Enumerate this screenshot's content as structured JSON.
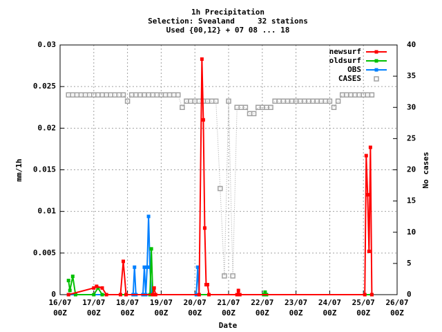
{
  "chart_data": {
    "type": "line",
    "title": [
      "1h Precipitation",
      "Selection: Svealand     32 stations",
      "Used {00,12} + 07 08 ... 18"
    ],
    "xlabel": "Date",
    "ylabel": "mm/1h",
    "y2label": "No cases",
    "xlim": [
      "16/07 00Z",
      "26/07 00Z"
    ],
    "xticks": [
      {
        "value": "16/07 00Z",
        "label": [
          "16/07",
          "00Z"
        ]
      },
      {
        "value": "17/07 00Z",
        "label": [
          "17/07",
          "00Z"
        ]
      },
      {
        "value": "18/07 00Z",
        "label": [
          "18/07",
          "00Z"
        ]
      },
      {
        "value": "19/07 00Z",
        "label": [
          "19/07",
          "00Z"
        ]
      },
      {
        "value": "20/07 00Z",
        "label": [
          "20/07",
          "00Z"
        ]
      },
      {
        "value": "21/07 00Z",
        "label": [
          "21/07",
          "00Z"
        ]
      },
      {
        "value": "22/07 00Z",
        "label": [
          "22/07",
          "00Z"
        ]
      },
      {
        "value": "23/07 00Z",
        "label": [
          "23/07",
          "00Z"
        ]
      },
      {
        "value": "24/07 00Z",
        "label": [
          "24/07",
          "00Z"
        ]
      },
      {
        "value": "25/07 00Z",
        "label": [
          "25/07",
          "00Z"
        ]
      },
      {
        "value": "26/07 00Z",
        "label": [
          "26/07",
          "00Z"
        ]
      }
    ],
    "ylim": [
      0,
      0.03
    ],
    "yticks": [
      0,
      0.005,
      0.01,
      0.015,
      0.02,
      0.025,
      0.03
    ],
    "y2lim": [
      0,
      40
    ],
    "y2ticks": [
      0,
      5,
      10,
      15,
      20,
      25,
      30,
      35,
      40
    ],
    "grid": true,
    "legend": "top-right",
    "series": [
      {
        "name": "newsurf",
        "color": "#ff0000",
        "x": [
          "16/07 06Z",
          "17/07 00Z",
          "17/07 02Z",
          "17/07 06Z",
          "17/07 09Z",
          "17/07 19Z",
          "17/07 21Z",
          "17/07 23Z",
          "18/07 18Z",
          "18/07 19Z",
          "18/07 20Z",
          "20/07 03Z",
          "20/07 05Z",
          "20/07 06Z",
          "20/07 07Z",
          "20/07 08Z",
          "20/07 09Z",
          "20/07 10Z",
          "21/07 06Z",
          "21/07 07Z",
          "21/07 08Z",
          "25/07 01Z",
          "25/07 02Z",
          "25/07 03Z",
          "25/07 04Z",
          "25/07 05Z",
          "25/07 06Z"
        ],
        "values": [
          0,
          0.0008,
          0.001,
          0.0008,
          0,
          0,
          0.004,
          0,
          0,
          0.0008,
          0,
          0,
          0.0283,
          0.021,
          0.008,
          0.0012,
          0.0012,
          0,
          0,
          0.0005,
          0,
          0,
          0.0167,
          0.012,
          0.0052,
          0.0177,
          0
        ]
      },
      {
        "name": "oldsurf",
        "color": "#00c000",
        "x": [
          "16/07 06Z",
          "16/07 07Z",
          "16/07 09Z",
          "16/07 11Z",
          "17/07 00Z",
          "17/07 03Z",
          "17/07 06Z",
          "18/07 16Z",
          "18/07 17Z",
          "18/07 18Z",
          "22/07 01Z",
          "22/07 02Z",
          "22/07 03Z",
          "25/07 06Z"
        ],
        "values": [
          0.0017,
          0.0005,
          0.0022,
          0,
          0,
          0.0008,
          0,
          0,
          0.0055,
          0,
          0,
          0.0003,
          0,
          0
        ]
      },
      {
        "name": "OBS",
        "color": "#0080ff",
        "x": [
          "16/07 06Z",
          "18/07 04Z",
          "18/07 05Z",
          "18/07 06Z",
          "18/07 11Z",
          "18/07 12Z",
          "18/07 13Z",
          "18/07 14Z",
          "18/07 15Z",
          "18/07 16Z",
          "18/07 17Z",
          "20/07 01Z",
          "20/07 02Z",
          "20/07 03Z",
          "25/07 06Z"
        ],
        "values": [
          0,
          0,
          0.0033,
          0,
          0,
          0.0033,
          0,
          0.0033,
          0.0094,
          0.0033,
          0,
          0,
          0.0033,
          0,
          0
        ]
      },
      {
        "name": "CASES",
        "color": "#a0a0a0",
        "axis": "y2",
        "x": [
          "16/07 06Z",
          "16/07 09Z",
          "16/07 12Z",
          "16/07 15Z",
          "16/07 18Z",
          "16/07 21Z",
          "17/07 00Z",
          "17/07 03Z",
          "17/07 06Z",
          "17/07 09Z",
          "17/07 12Z",
          "17/07 15Z",
          "17/07 18Z",
          "17/07 21Z",
          "18/07 00Z",
          "18/07 03Z",
          "18/07 06Z",
          "18/07 09Z",
          "18/07 12Z",
          "18/07 15Z",
          "18/07 18Z",
          "18/07 21Z",
          "19/07 00Z",
          "19/07 03Z",
          "19/07 06Z",
          "19/07 09Z",
          "19/07 12Z",
          "19/07 15Z",
          "19/07 18Z",
          "19/07 21Z",
          "20/07 00Z",
          "20/07 03Z",
          "20/07 06Z",
          "20/07 09Z",
          "20/07 12Z",
          "20/07 15Z",
          "20/07 18Z",
          "20/07 21Z",
          "21/07 00Z",
          "21/07 03Z",
          "21/07 06Z",
          "21/07 09Z",
          "21/07 12Z",
          "21/07 15Z",
          "21/07 18Z",
          "21/07 21Z",
          "22/07 00Z",
          "22/07 03Z",
          "22/07 06Z",
          "22/07 09Z",
          "22/07 12Z",
          "22/07 15Z",
          "22/07 18Z",
          "22/07 21Z",
          "23/07 00Z",
          "23/07 03Z",
          "23/07 06Z",
          "23/07 09Z",
          "23/07 12Z",
          "23/07 15Z",
          "23/07 18Z",
          "23/07 21Z",
          "24/07 00Z",
          "24/07 03Z",
          "24/07 06Z",
          "24/07 09Z",
          "24/07 12Z",
          "24/07 15Z",
          "24/07 18Z",
          "24/07 21Z",
          "25/07 00Z",
          "25/07 03Z",
          "25/07 06Z"
        ],
        "values": [
          32,
          32,
          32,
          32,
          32,
          32,
          32,
          32,
          32,
          32,
          32,
          32,
          32,
          32,
          31,
          32,
          32,
          32,
          32,
          32,
          32,
          32,
          32,
          32,
          32,
          32,
          32,
          30,
          31,
          31,
          31,
          31,
          31,
          31,
          31,
          31,
          17,
          3,
          31,
          3,
          30,
          30,
          30,
          29,
          29,
          30,
          30,
          30,
          30,
          31,
          31,
          31,
          31,
          31,
          31,
          31,
          31,
          31,
          31,
          31,
          31,
          31,
          31,
          30,
          31,
          32,
          32,
          32,
          32,
          32,
          32,
          32,
          32
        ]
      }
    ]
  }
}
